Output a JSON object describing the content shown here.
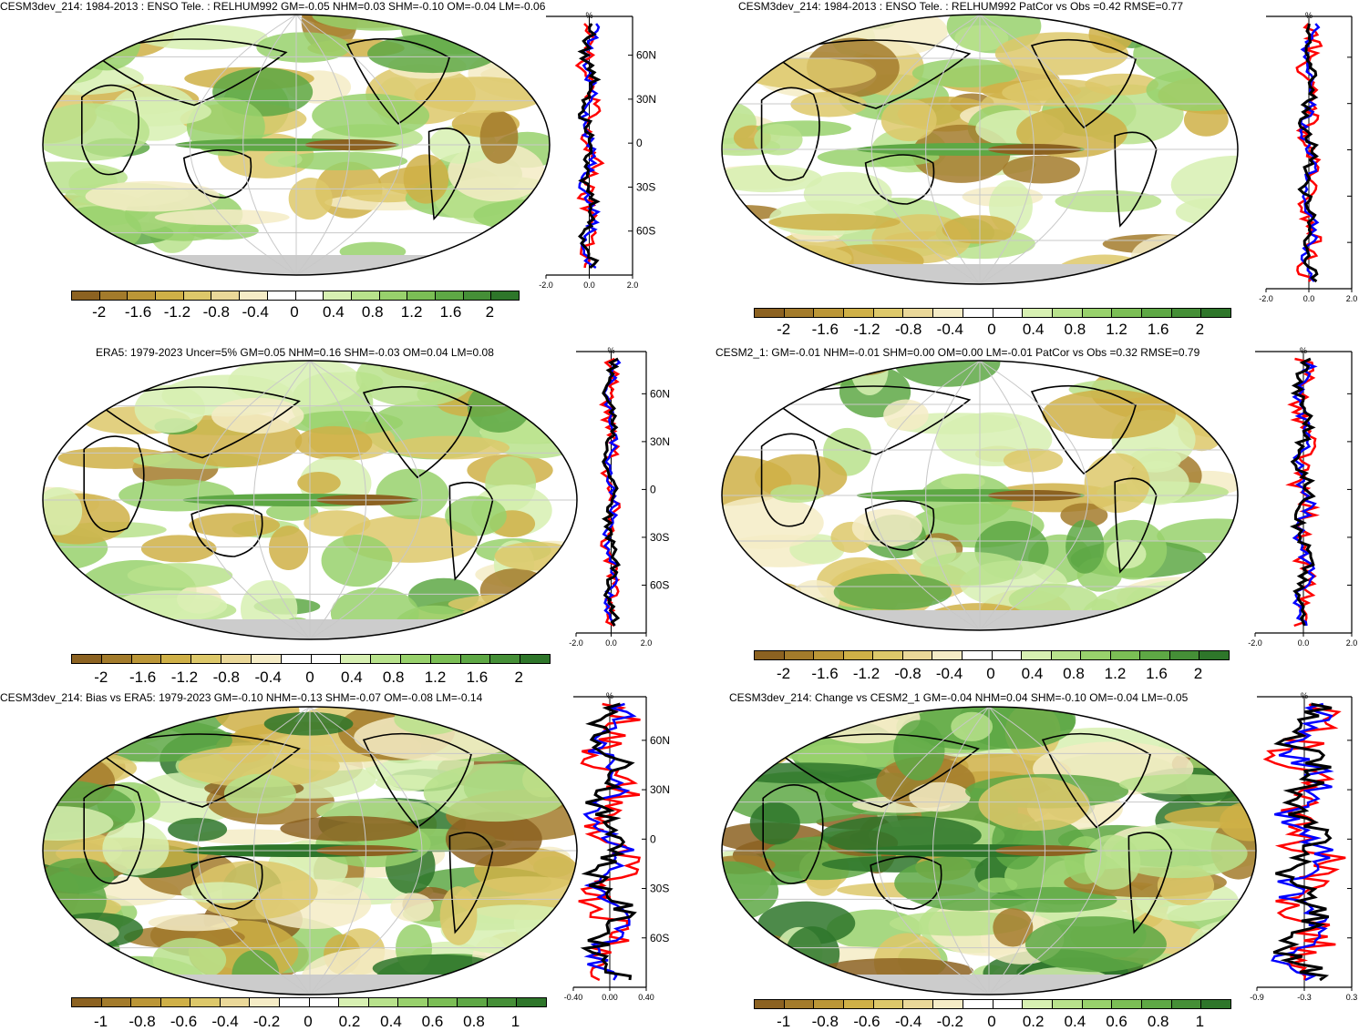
{
  "palette_main": [
    "#8c6221",
    "#a37b2b",
    "#bb9637",
    "#cfb047",
    "#ddc86a",
    "#ead899",
    "#f5ecc6",
    "#ffffff",
    "#ffffff",
    "#d7f0b2",
    "#b8e28c",
    "#98d16c",
    "#7bbe55",
    "#5ea845",
    "#458f37",
    "#2e762a"
  ],
  "profile_colors": {
    "red": "#ff0000",
    "blue": "#0000ff",
    "black": "#000000"
  },
  "panels": [
    {
      "id": "p1",
      "title": "CESM3dev_214: 1984-2013 : ENSO Tele. : RELHUM992 GM=-0.05 NHM=0.03 SHM=-0.10 OM=-0.04 LM=-0.06",
      "colorbar_labels": [
        "-2",
        "-1.6",
        "-1.2",
        "-0.8",
        "-0.4",
        "0",
        "0.4",
        "0.8",
        "1.2",
        "1.6",
        "2"
      ],
      "lat_labels": [
        "60N",
        "30N",
        "0",
        "30S",
        "60S"
      ],
      "x_labels": [
        "-2.0",
        "0.0",
        "2.0"
      ],
      "unit": "%"
    },
    {
      "id": "p2",
      "title": "CESM3dev_214: 1984-2013 : ENSO Tele. : RELHUM992 PatCor vs Obs =0.42 RMSE=0.77",
      "colorbar_labels": [
        "-2",
        "-1.6",
        "-1.2",
        "-0.8",
        "-0.4",
        "0",
        "0.4",
        "0.8",
        "1.2",
        "1.6",
        "2"
      ],
      "lat_labels": [],
      "x_labels": [
        "-2.0",
        "0.0",
        "2.0"
      ],
      "unit": "%"
    },
    {
      "id": "p3",
      "title": "ERA5: 1979-2023 Uncer=5% GM=0.05 NHM=0.16 SHM=-0.03 OM=0.04 LM=0.08",
      "colorbar_labels": [
        "-2",
        "-1.6",
        "-1.2",
        "-0.8",
        "-0.4",
        "0",
        "0.4",
        "0.8",
        "1.2",
        "1.6",
        "2"
      ],
      "lat_labels": [
        "60N",
        "30N",
        "0",
        "30S",
        "60S"
      ],
      "x_labels": [
        "-2.0",
        "0.0",
        "2.0"
      ],
      "unit": "%"
    },
    {
      "id": "p4",
      "title": "CESM2_1: GM=-0.01 NHM=-0.01 SHM=0.00 OM=0.00 LM=-0.01 PatCor vs Obs =0.32 RMSE=0.79",
      "colorbar_labels": [
        "-2",
        "-1.6",
        "-1.2",
        "-0.8",
        "-0.4",
        "0",
        "0.4",
        "0.8",
        "1.2",
        "1.6",
        "2"
      ],
      "lat_labels": [],
      "x_labels": [
        "-2.0",
        "0.0",
        "2.0"
      ],
      "unit": "%"
    },
    {
      "id": "p5",
      "title": "CESM3dev_214: Bias vs ERA5: 1979-2023 GM=-0.10 NHM=-0.13 SHM=-0.07 OM=-0.08 LM=-0.14",
      "colorbar_labels": [
        "-1",
        "-0.8",
        "-0.6",
        "-0.4",
        "-0.2",
        "0",
        "0.2",
        "0.4",
        "0.6",
        "0.8",
        "1"
      ],
      "lat_labels": [
        "60N",
        "30N",
        "0",
        "30S",
        "60S"
      ],
      "x_labels": [
        "-0.40",
        "0.00",
        "0.40"
      ],
      "unit": "%"
    },
    {
      "id": "p6",
      "title": "CESM3dev_214: Change vs CESM2_1 GM=-0.04 NHM=0.04 SHM=-0.10 OM=-0.04 LM=-0.05",
      "colorbar_labels": [
        "-1",
        "-0.8",
        "-0.6",
        "-0.4",
        "-0.2",
        "0",
        "0.2",
        "0.4",
        "0.6",
        "0.8",
        "1"
      ],
      "lat_labels": [],
      "x_labels": [
        "-0.9",
        "-0.3",
        "0.3"
      ],
      "unit": "%"
    }
  ]
}
